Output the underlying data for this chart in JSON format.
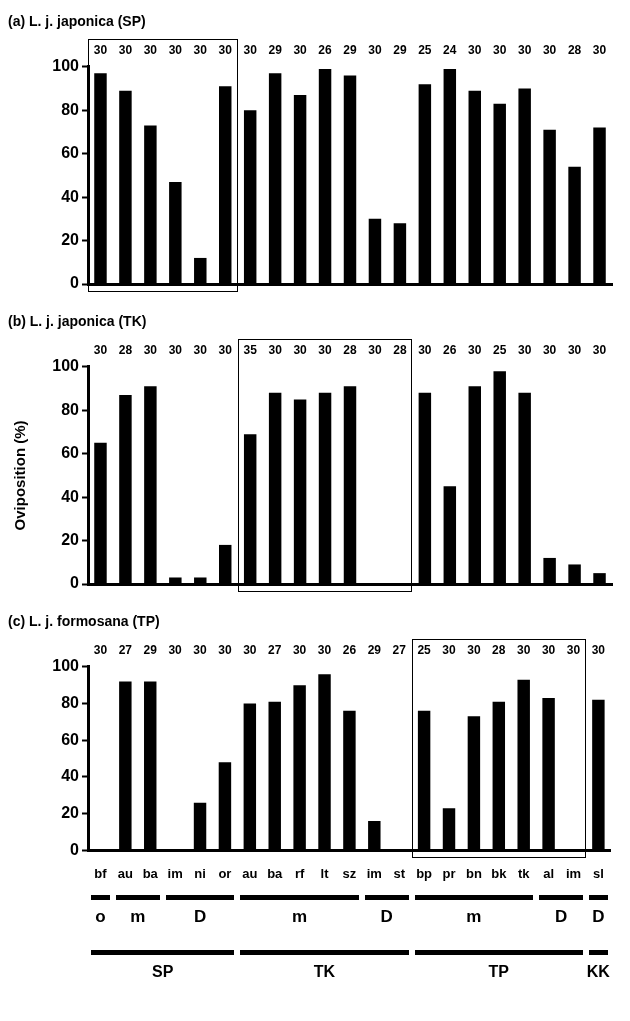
{
  "chart_data": [
    {
      "type": "bar",
      "title": "(a) L. j. japonica (SP)",
      "categories": [
        null,
        null,
        null,
        null,
        null,
        null,
        null,
        null,
        null,
        null,
        null,
        null,
        null,
        null,
        null,
        null,
        null,
        null,
        null,
        null,
        null
      ],
      "tick_labels": "y",
      "color": "#000000",
      "values": [
        97,
        89,
        73,
        47,
        12,
        91,
        80,
        97,
        87,
        99,
        96,
        30,
        28,
        92,
        99,
        89,
        83,
        90,
        71,
        54,
        72
      ],
      "annotations": [
        "30",
        "30",
        "30",
        "30",
        "30",
        "30",
        "30",
        "29",
        "30",
        "26",
        "29",
        "30",
        "29",
        "25",
        "24",
        "30",
        "30",
        "30",
        "30",
        "28",
        "30"
      ],
      "ylim": [
        0,
        100
      ],
      "yticks": [
        0,
        20,
        40,
        60,
        80,
        100
      ]
    },
    {
      "type": "bar",
      "title": "(b) L. j. japonica (TK)",
      "ylabel": "Oviposition (%)",
      "categories": [
        null,
        null,
        null,
        null,
        null,
        null,
        null,
        null,
        null,
        null,
        null,
        null,
        null,
        null,
        null,
        null,
        null,
        null,
        null,
        null,
        null
      ],
      "tick_labels": "y",
      "color": "#000000",
      "values": [
        65,
        87,
        91,
        3,
        3,
        18,
        69,
        88,
        85,
        88,
        91,
        0,
        0,
        88,
        45,
        91,
        98,
        88,
        12,
        9,
        5
      ],
      "annotations": [
        "30",
        "28",
        "30",
        "30",
        "30",
        "30",
        "35",
        "30",
        "30",
        "30",
        "28",
        "30",
        "28",
        "30",
        "26",
        "30",
        "25",
        "30",
        "30",
        "30",
        "30"
      ],
      "ylim": [
        0,
        100
      ],
      "yticks": [
        0,
        20,
        40,
        60,
        80,
        100
      ]
    },
    {
      "type": "bar",
      "title": "(c) L. j. formosana (TP)",
      "categories": [
        "bf",
        "au",
        "ba",
        "im",
        "ni",
        "or",
        "au",
        "ba",
        "rf",
        "lt",
        "sz",
        "im",
        "st",
        "bp",
        "pr",
        "bn",
        "bk",
        "tk",
        "al",
        "im",
        "sl"
      ],
      "color": "#000000",
      "values": [
        0,
        92,
        92,
        0,
        26,
        48,
        80,
        81,
        90,
        96,
        76,
        16,
        0,
        76,
        23,
        73,
        81,
        93,
        83,
        0,
        82
      ],
      "annotations": [
        "30",
        "27",
        "29",
        "30",
        "30",
        "30",
        "30",
        "27",
        "30",
        "30",
        "26",
        "29",
        "27",
        "25",
        "30",
        "30",
        "28",
        "30",
        "30",
        "30",
        "30",
        "o",
        "m",
        "D",
        "m",
        "D",
        "m",
        "D",
        "D",
        "SP",
        "TK",
        "TP",
        "KK"
      ],
      "ylim": [
        0,
        100
      ],
      "yticks": [
        0,
        20,
        40,
        60,
        80,
        100
      ]
    }
  ]
}
